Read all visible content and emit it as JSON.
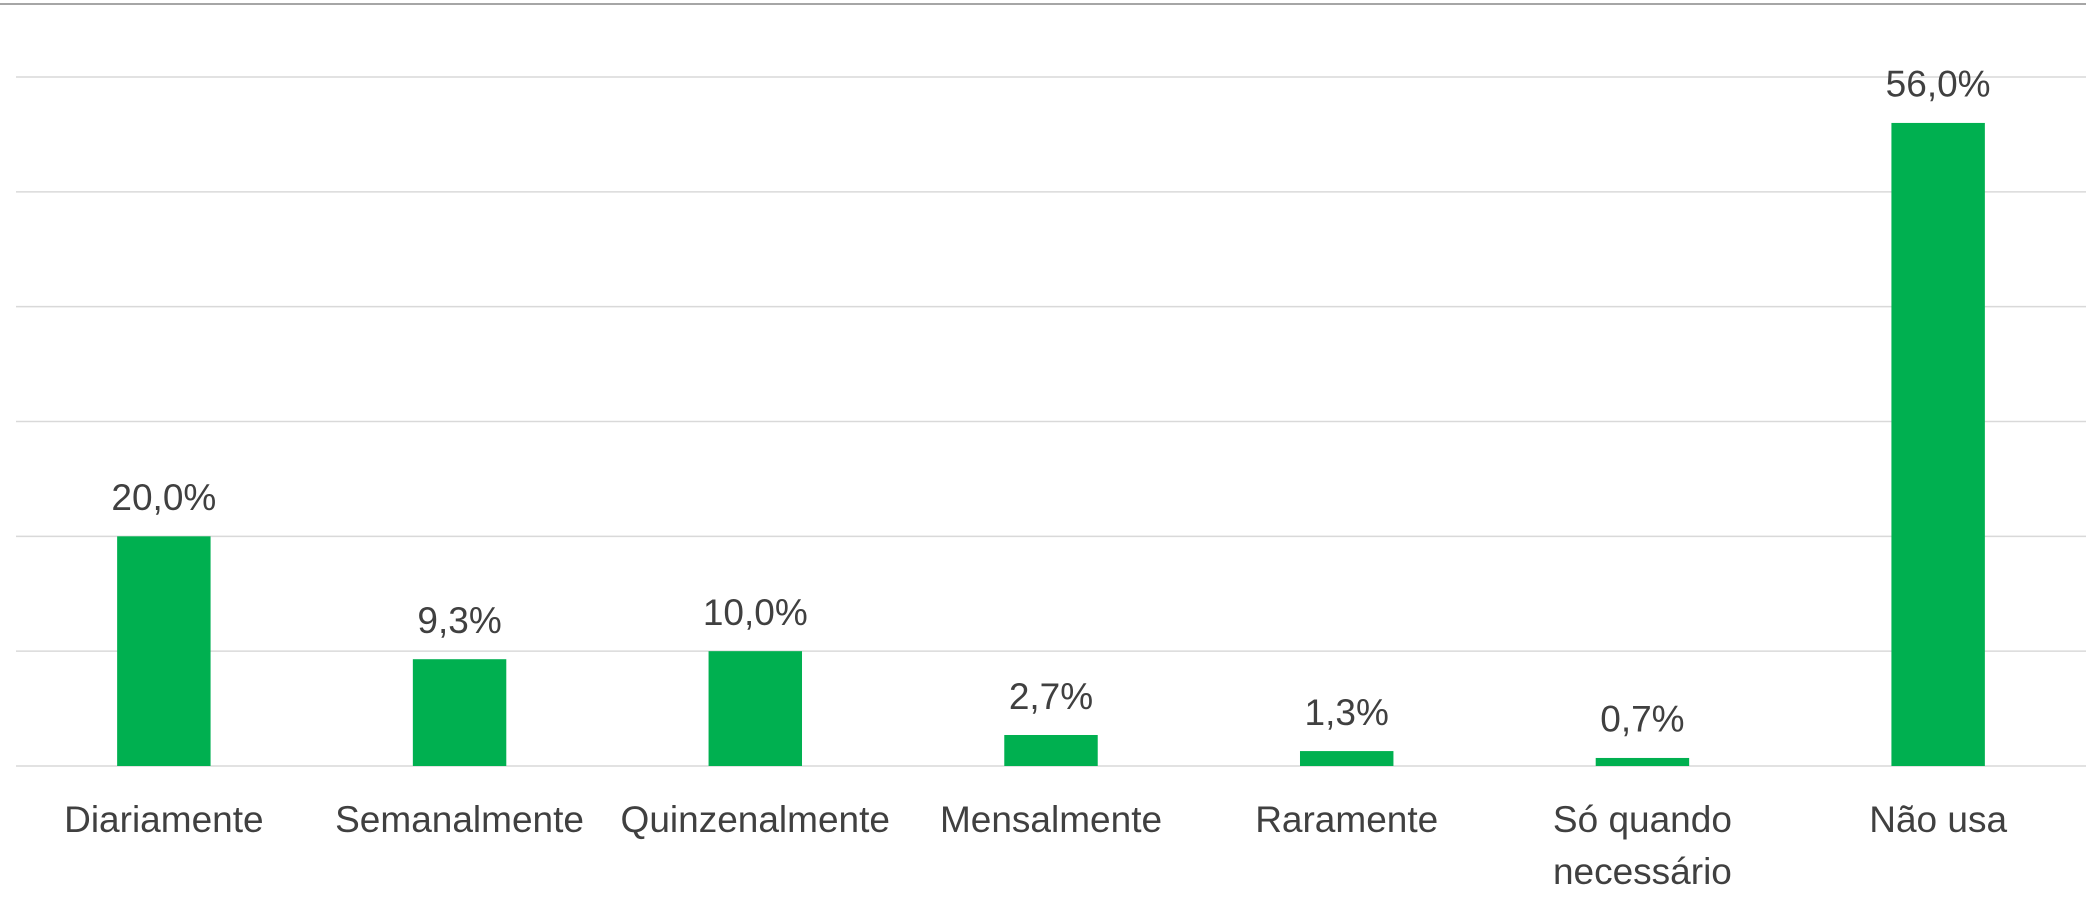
{
  "chart_data": {
    "type": "bar",
    "categories": [
      "Diariamente",
      "Semanalmente",
      "Quinzenalmente",
      "Mensalmente",
      "Raramente",
      "Só quando necessário",
      "Não usa"
    ],
    "values": [
      20.0,
      9.3,
      10.0,
      2.7,
      1.3,
      0.7,
      56.0
    ],
    "value_labels": [
      "20,0%",
      "9,3%",
      "10,0%",
      "2,7%",
      "1,3%",
      "0,7%",
      "56,0%"
    ],
    "color": "#00b050",
    "ylim": [
      0,
      60
    ],
    "yticks": [
      0,
      10,
      20,
      30,
      40,
      50,
      60
    ],
    "grid": true
  }
}
